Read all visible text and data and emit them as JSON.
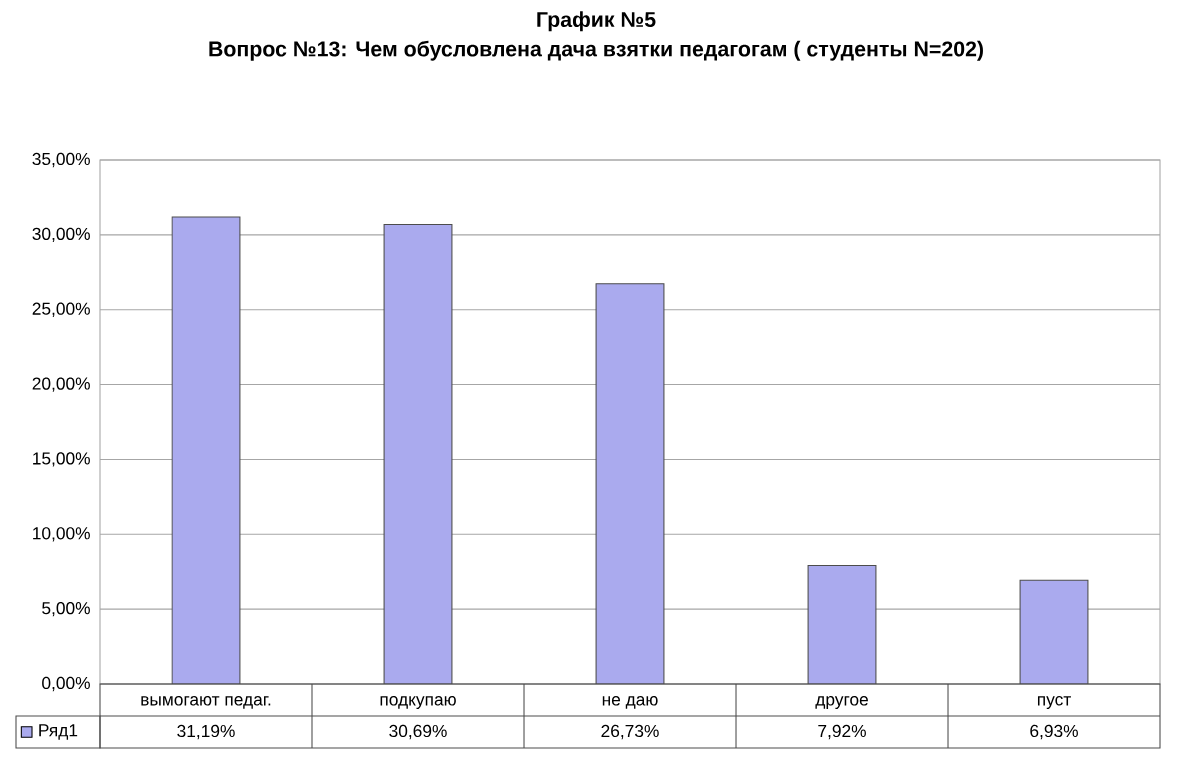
{
  "chart_data": {
    "type": "bar",
    "title": "График №5",
    "subtitle": "Вопрос №13: Чем обусловлена дача взятки педагогам ( студенты N=202)",
    "categories": [
      "вымогают педаг.",
      "подкупаю",
      "не даю",
      "другое",
      "пуст"
    ],
    "series": [
      {
        "name": "Ряд1",
        "color": "#aaaaee",
        "values": [
          31.19,
          30.69,
          26.73,
          7.92,
          6.93
        ],
        "value_labels": [
          "31,19%",
          "30,69%",
          "26,73%",
          "7,92%",
          "6,93%"
        ]
      }
    ],
    "ylim": [
      0,
      35
    ],
    "yticks": [
      {
        "value": 0,
        "label": "0,00%"
      },
      {
        "value": 5,
        "label": "5,00%"
      },
      {
        "value": 10,
        "label": "10,00%"
      },
      {
        "value": 15,
        "label": "15,00%"
      },
      {
        "value": 20,
        "label": "20,00%"
      },
      {
        "value": 25,
        "label": "25,00%"
      },
      {
        "value": 30,
        "label": "30,00%"
      },
      {
        "value": 35,
        "label": "35,00%"
      }
    ],
    "grid": "y",
    "legend": "bottom left"
  }
}
